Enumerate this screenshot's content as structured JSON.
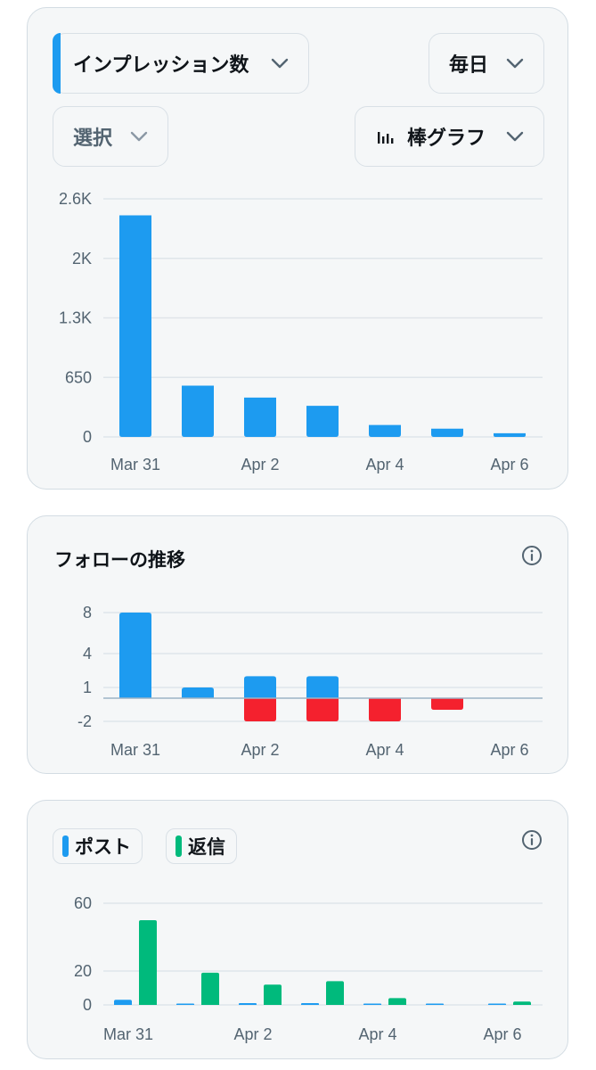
{
  "impressions_card": {
    "metric_select": "インプレッション数",
    "period_select": "毎日",
    "compare_select": "選択",
    "chart_type_select": "棒グラフ",
    "icons": [
      "chevron-down-icon",
      "bar-chart-icon"
    ],
    "colors": {
      "bar": "#1d9bf0",
      "accent": "#1d9bf0"
    }
  },
  "follows_card": {
    "title": "フォローの推移",
    "icons": [
      "info-icon"
    ],
    "colors": {
      "positive": "#1d9bf0",
      "negative": "#f4212e"
    }
  },
  "posts_card": {
    "legend": [
      {
        "label": "ポスト",
        "color": "#1d9bf0"
      },
      {
        "label": "返信",
        "color": "#00ba7c"
      }
    ],
    "icons": [
      "info-icon"
    ]
  },
  "chart_data": [
    {
      "type": "bar",
      "x_tick_labels": [
        "Mar 31",
        "Apr 2",
        "Apr 4",
        "Apr 6"
      ],
      "y_tick_labels": [
        "2.6K",
        "2K",
        "1.3K",
        "650",
        "0"
      ],
      "ylim": [
        0,
        2600
      ],
      "grid": true,
      "series": [
        {
          "values": [
            2420,
            560,
            430,
            340,
            130,
            90,
            40
          ]
        }
      ]
    },
    {
      "type": "bar",
      "x_tick_labels": [
        "Mar 31",
        "Apr 2",
        "Apr 4",
        "Apr 6"
      ],
      "y_tick_labels": [
        "8",
        "4",
        "1",
        "-2"
      ],
      "y_ticks": [
        8,
        4,
        1,
        -2
      ],
      "grid": true,
      "series": [
        {
          "values": [
            8,
            1,
            2,
            2,
            0,
            0,
            0
          ]
        },
        {
          "values": [
            0,
            0,
            -2,
            -2,
            -2,
            -1,
            0
          ]
        }
      ]
    },
    {
      "type": "bar",
      "x_tick_labels": [
        "Mar 31",
        "Apr 2",
        "Apr 4",
        "Apr 6"
      ],
      "y_tick_labels": [
        "60",
        "20",
        "0"
      ],
      "ylim": [
        0,
        60
      ],
      "grid": true,
      "series": [
        {
          "name": "ポスト",
          "values": [
            3,
            0,
            1,
            1,
            0,
            0,
            0
          ]
        },
        {
          "name": "返信",
          "values": [
            50,
            19,
            12,
            14,
            4,
            0,
            2
          ]
        }
      ]
    }
  ]
}
